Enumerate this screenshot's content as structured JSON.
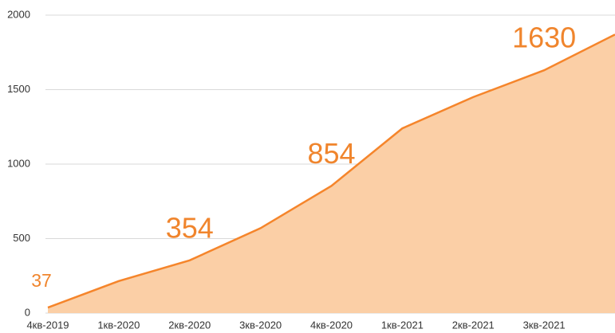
{
  "chart_data": {
    "type": "area",
    "categories": [
      "4кв-2019",
      "1кв-2020",
      "2кв-2020",
      "3кв-2020",
      "4кв-2020",
      "1кв-2021",
      "2кв-2021",
      "3кв-2021",
      null
    ],
    "series": [
      {
        "color": "#f5852b",
        "fill": "#fbcfa6",
        "values": [
          37,
          215,
          354,
          570,
          854,
          1240,
          1450,
          1630,
          1870
        ],
        "value_labels": [
          "37",
          null,
          "354",
          null,
          "854",
          null,
          null,
          "1630",
          null
        ]
      }
    ],
    "ylim": [
      0,
      2000
    ],
    "yticks": [
      0,
      500,
      1000,
      1500,
      2000
    ],
    "grid": true
  }
}
